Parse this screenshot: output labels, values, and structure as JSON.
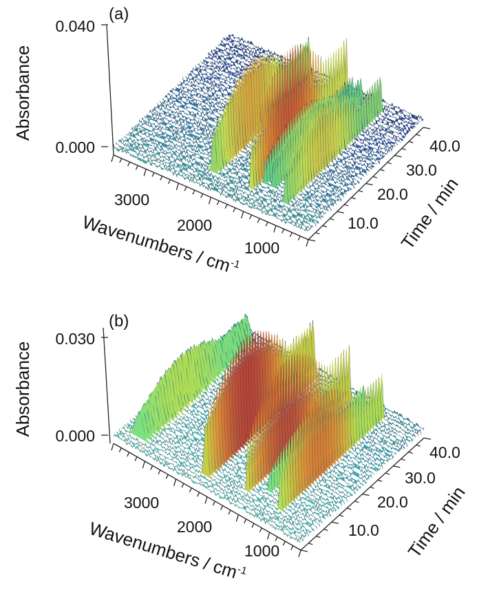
{
  "chart_data": [
    {
      "panel_label": "(a)",
      "type": "3d-waterfall",
      "xlabel": "Wavenumbers / cm",
      "xlabel_sup": "-1",
      "ylabel": "Absorbance",
      "zlabel": "Time / min",
      "x_ticks": [
        "3000",
        "2000",
        "1000"
      ],
      "y_ticks": [
        "0.000",
        "0.040"
      ],
      "z_ticks": [
        "10.0",
        "20.0",
        "30.0",
        "40.0"
      ],
      "x_range": [
        3800,
        600
      ],
      "z_range": [
        0,
        45
      ],
      "y_range": [
        0,
        0.04
      ],
      "peaks": [
        {
          "wavenumber": 2360,
          "height": 0.026,
          "width": 40,
          "t_start": 5,
          "t_end": 42
        },
        {
          "wavenumber": 1740,
          "height": 0.036,
          "width": 22,
          "t_start": 5,
          "t_end": 42
        },
        {
          "wavenumber": 1640,
          "height": 0.014,
          "width": 25,
          "t_start": 8,
          "t_end": 42
        },
        {
          "wavenumber": 1500,
          "height": 0.016,
          "width": 25,
          "t_start": 8,
          "t_end": 42
        },
        {
          "wavenumber": 1180,
          "height": 0.022,
          "width": 25,
          "t_start": 5,
          "t_end": 42
        }
      ],
      "colorscale": [
        "#1f2a7a",
        "#2f5fb0",
        "#3fa7b4",
        "#6fd37e",
        "#cfe04a",
        "#e88a2a",
        "#c0392b"
      ]
    },
    {
      "panel_label": "(b)",
      "type": "3d-waterfall",
      "xlabel": "Wavenumbers / cm",
      "xlabel_sup": "-1",
      "ylabel": "Absorbance",
      "zlabel": "Time / min",
      "x_ticks": [
        "3000",
        "2000",
        "1000"
      ],
      "y_ticks": [
        "0.000",
        "0.030"
      ],
      "z_ticks": [
        "10.0",
        "20.0",
        "30.0",
        "40.0"
      ],
      "x_range": [
        3800,
        600
      ],
      "z_range": [
        0,
        45
      ],
      "y_range": [
        0,
        0.03
      ],
      "peaks": [
        {
          "wavenumber": 2360,
          "height": 0.03,
          "width": 40,
          "t_start": 3,
          "t_end": 42
        },
        {
          "wavenumber": 3500,
          "height": 0.013,
          "width": 90,
          "t_start": 3,
          "t_end": 42
        },
        {
          "wavenumber": 1740,
          "height": 0.029,
          "width": 22,
          "t_start": 5,
          "t_end": 42
        },
        {
          "wavenumber": 1500,
          "height": 0.012,
          "width": 25,
          "t_start": 8,
          "t_end": 42
        },
        {
          "wavenumber": 1180,
          "height": 0.024,
          "width": 25,
          "t_start": 5,
          "t_end": 42
        }
      ],
      "colorscale": [
        "#1e7a8a",
        "#2fb3c4",
        "#4fd0c8",
        "#7fe07a",
        "#c8e043",
        "#e88a2a",
        "#c0392b"
      ]
    }
  ]
}
